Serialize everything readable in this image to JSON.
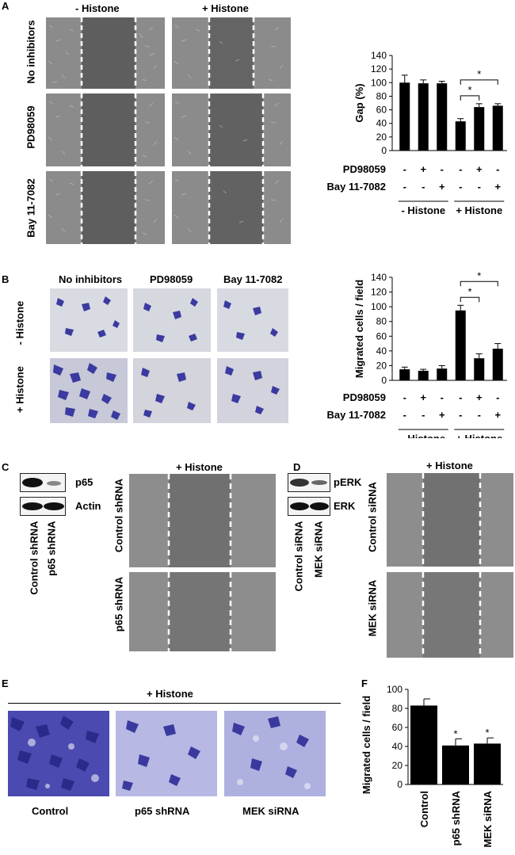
{
  "panel_letters": {
    "a": "A",
    "b": "B",
    "c": "C",
    "d": "D",
    "e": "E",
    "f": "F"
  },
  "panelA": {
    "col_headers": [
      "- Histone",
      "+ Histone"
    ],
    "row_labels": [
      "No inhibitors",
      "PD98059",
      "Bay 11-7082"
    ]
  },
  "panelB": {
    "col_headers": [
      "No inhibitors",
      "PD98059",
      "Bay 11-7082"
    ],
    "row_labels": [
      "- Histone",
      "+ Histone"
    ]
  },
  "panelC": {
    "blot_labels": [
      "p65",
      "Actin"
    ],
    "lane_labels": [
      "Control shRNA",
      "p65 shRNA"
    ],
    "header": "+ Histone",
    "row_labels": [
      "Control shRNA",
      "p65 shRNA"
    ]
  },
  "panelD": {
    "blot_labels": [
      "pERK",
      "ERK"
    ],
    "lane_labels": [
      "Control siRNA",
      "MEK siRNA"
    ],
    "header": "+ Histone",
    "row_labels": [
      "Control siRNA",
      "MEK siRNA"
    ]
  },
  "panelE": {
    "header": "+ Histone",
    "captions": [
      "Control",
      "p65 shRNA",
      "MEK siRNA"
    ]
  },
  "colors": {
    "bar": "#000000",
    "crystal_violet": "#3b3aa0",
    "phase_bg": "#8a8a8a",
    "gap": "#5f5f5f"
  },
  "chart_data": [
    {
      "type": "bar",
      "ylabel": "Gap (%)",
      "ylim": [
        0,
        140
      ],
      "yticks": [
        0,
        20,
        40,
        60,
        80,
        100,
        120,
        140
      ],
      "values": [
        100,
        99,
        99,
        43,
        64,
        66
      ],
      "errors": [
        11,
        5,
        3,
        4,
        5,
        3
      ],
      "treatment_rows": [
        {
          "label": "PD98059",
          "signs": [
            "-",
            "+",
            "-",
            "-",
            "+",
            "-"
          ]
        },
        {
          "label": "Bay 11-7082",
          "signs": [
            "-",
            "-",
            "+",
            "-",
            "-",
            "+"
          ]
        }
      ],
      "groups": [
        {
          "label": "- Histone",
          "bars": [
            0,
            1,
            2
          ]
        },
        {
          "label": "+ Histone",
          "bars": [
            3,
            4,
            5
          ]
        }
      ],
      "significance": [
        {
          "from": 3,
          "to": 4,
          "mark": "*"
        },
        {
          "from": 3,
          "to": 5,
          "mark": "*"
        }
      ]
    },
    {
      "type": "bar",
      "ylabel": "Migrated cells / field",
      "ylim": [
        0,
        140
      ],
      "yticks": [
        0,
        20,
        40,
        60,
        80,
        100,
        120,
        140
      ],
      "values": [
        15,
        13,
        16,
        95,
        30,
        43
      ],
      "errors": [
        3,
        2,
        4,
        7,
        6,
        7
      ],
      "treatment_rows": [
        {
          "label": "PD98059",
          "signs": [
            "-",
            "+",
            "-",
            "-",
            "+",
            "-"
          ]
        },
        {
          "label": "Bay 11-7082",
          "signs": [
            "-",
            "-",
            "+",
            "-",
            "-",
            "+"
          ]
        }
      ],
      "groups": [
        {
          "label": "- Histone",
          "bars": [
            0,
            1,
            2
          ]
        },
        {
          "label": "+ Histone",
          "bars": [
            3,
            4,
            5
          ]
        }
      ],
      "significance": [
        {
          "from": 3,
          "to": 4,
          "mark": "*"
        },
        {
          "from": 3,
          "to": 5,
          "mark": "*"
        }
      ]
    },
    {
      "type": "bar",
      "ylabel": "Migrated cells / field",
      "ylim": [
        0,
        100
      ],
      "yticks": [
        0,
        20,
        40,
        60,
        80,
        100
      ],
      "categories": [
        "Control",
        "p65 shRNA",
        "MEK siRNA"
      ],
      "values": [
        83,
        41,
        43
      ],
      "errors": [
        7,
        7,
        6
      ],
      "stars": [
        "",
        "*",
        "*"
      ]
    }
  ]
}
